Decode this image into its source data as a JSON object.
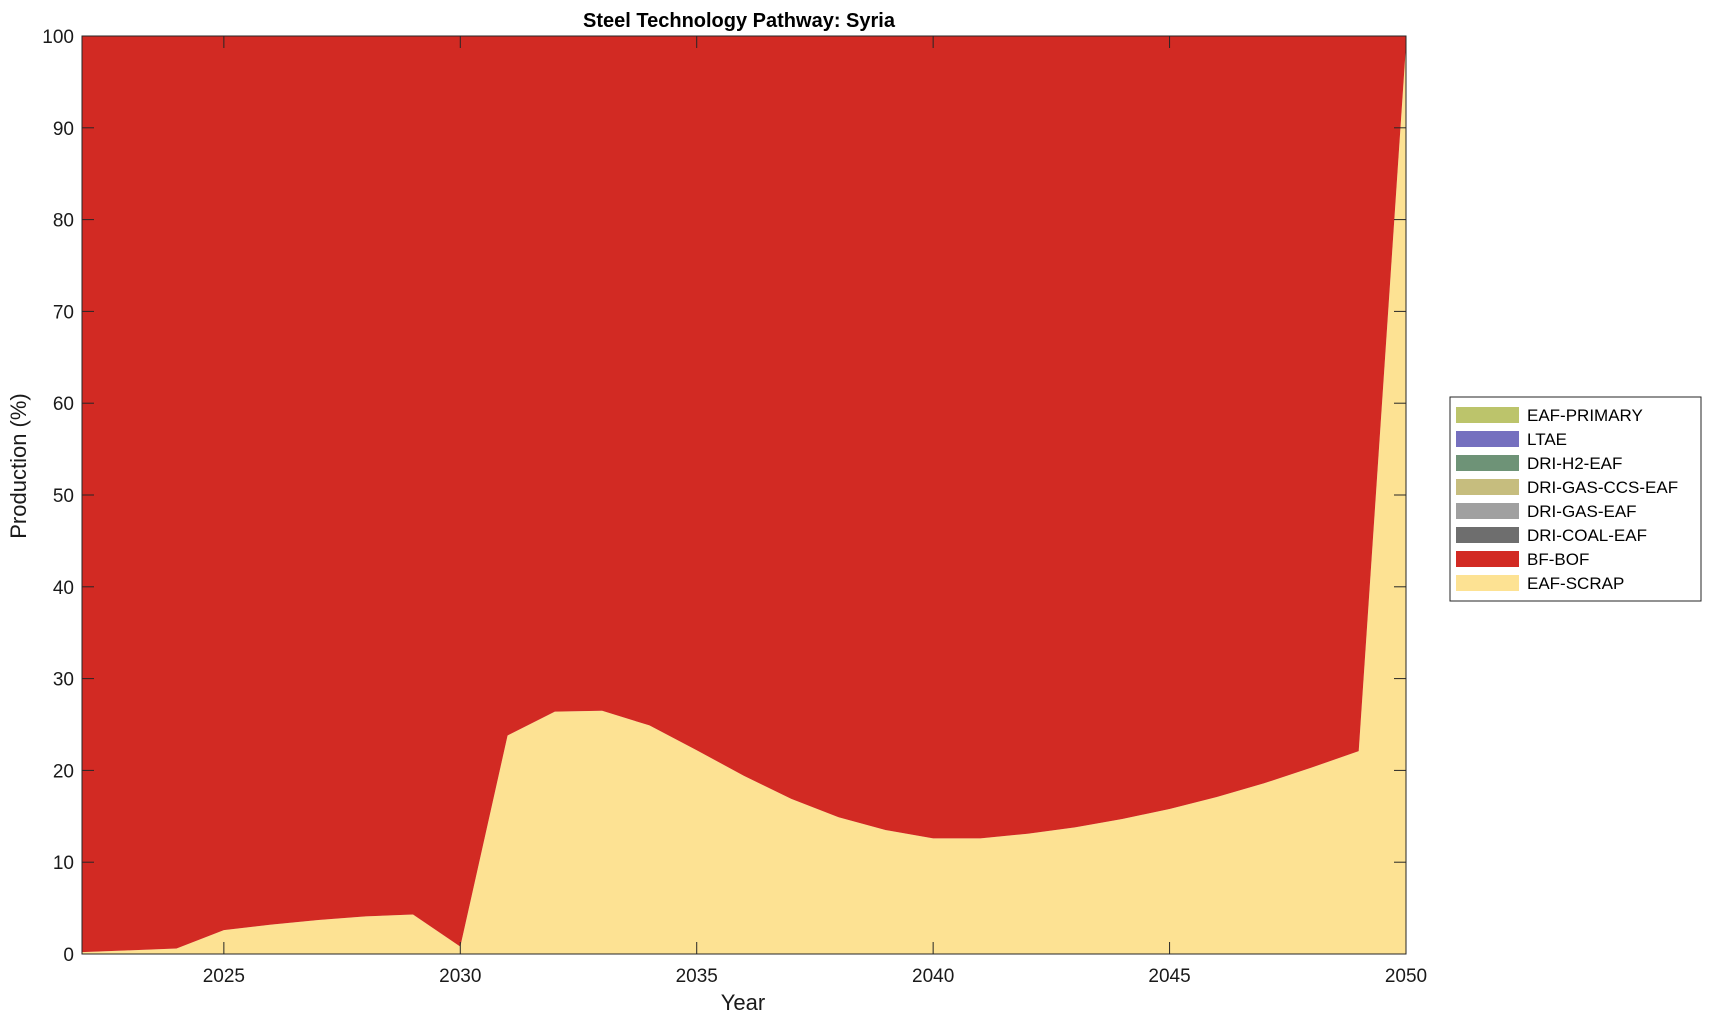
{
  "chart_data": {
    "type": "area",
    "title": "Steel Technology Pathway: Syria",
    "xlabel": "Year",
    "ylabel": "Production (%)",
    "xlim": [
      2022,
      2050
    ],
    "ylim": [
      0,
      100
    ],
    "x_ticks": [
      "2025",
      "2030",
      "2035",
      "2040",
      "2045",
      "2050"
    ],
    "y_ticks": [
      "0",
      "10",
      "20",
      "30",
      "40",
      "50",
      "60",
      "70",
      "80",
      "90",
      "100"
    ],
    "legend_position": "right",
    "stacked": true,
    "x": [
      2022,
      2023,
      2024,
      2025,
      2026,
      2027,
      2028,
      2029,
      2030,
      2031,
      2032,
      2033,
      2034,
      2035,
      2036,
      2037,
      2038,
      2039,
      2040,
      2041,
      2042,
      2043,
      2044,
      2045,
      2046,
      2047,
      2048,
      2049,
      2050
    ],
    "series": [
      {
        "name": "EAF-SCRAP",
        "color": "#FDE293",
        "values": [
          0.2,
          0.4,
          0.6,
          2.6,
          3.2,
          3.7,
          4.1,
          4.3,
          0.8,
          23.8,
          26.4,
          26.5,
          24.9,
          22.2,
          19.4,
          16.9,
          14.9,
          13.5,
          12.6,
          12.6,
          13.1,
          13.8,
          14.7,
          15.8,
          17.1,
          18.6,
          20.3,
          22.1,
          99.0
        ]
      },
      {
        "name": "BF-BOF",
        "color": "#D22A23",
        "values": [
          99.8,
          99.6,
          99.4,
          97.4,
          96.8,
          96.3,
          95.9,
          95.7,
          99.2,
          76.2,
          73.6,
          73.5,
          75.1,
          77.8,
          80.6,
          83.1,
          85.1,
          86.5,
          87.4,
          87.4,
          86.9,
          86.2,
          85.3,
          84.2,
          82.9,
          81.4,
          79.7,
          77.9,
          1.0
        ]
      },
      {
        "name": "DRI-COAL-EAF",
        "color": "#6E6E6E",
        "values": [
          0,
          0,
          0,
          0,
          0,
          0,
          0,
          0,
          0,
          0,
          0,
          0,
          0,
          0,
          0,
          0,
          0,
          0,
          0,
          0,
          0,
          0,
          0,
          0,
          0,
          0,
          0,
          0,
          0
        ]
      },
      {
        "name": "DRI-GAS-EAF",
        "color": "#A0A0A0",
        "values": [
          0,
          0,
          0,
          0,
          0,
          0,
          0,
          0,
          0,
          0,
          0,
          0,
          0,
          0,
          0,
          0,
          0,
          0,
          0,
          0,
          0,
          0,
          0,
          0,
          0,
          0,
          0,
          0,
          0
        ]
      },
      {
        "name": "DRI-GAS-CCS-EAF",
        "color": "#C6BD7E",
        "values": [
          0,
          0,
          0,
          0,
          0,
          0,
          0,
          0,
          0,
          0,
          0,
          0,
          0,
          0,
          0,
          0,
          0,
          0,
          0,
          0,
          0,
          0,
          0,
          0,
          0,
          0,
          0,
          0,
          0
        ]
      },
      {
        "name": "DRI-H2-EAF",
        "color": "#6E9377",
        "values": [
          0,
          0,
          0,
          0,
          0,
          0,
          0,
          0,
          0,
          0,
          0,
          0,
          0,
          0,
          0,
          0,
          0,
          0,
          0,
          0,
          0,
          0,
          0,
          0,
          0,
          0,
          0,
          0,
          0
        ]
      },
      {
        "name": "LTAE",
        "color": "#7570BF",
        "values": [
          0,
          0,
          0,
          0,
          0,
          0,
          0,
          0,
          0,
          0,
          0,
          0,
          0,
          0,
          0,
          0,
          0,
          0,
          0,
          0,
          0,
          0,
          0,
          0,
          0,
          0,
          0,
          0,
          0
        ]
      },
      {
        "name": "EAF-PRIMARY",
        "color": "#BCC46B",
        "values": [
          0,
          0,
          0,
          0,
          0,
          0,
          0,
          0,
          0,
          0,
          0,
          0,
          0,
          0,
          0,
          0,
          0,
          0,
          0,
          0,
          0,
          0,
          0,
          0,
          0,
          0,
          0,
          0,
          0
        ]
      }
    ],
    "legend_order": [
      "EAF-PRIMARY",
      "LTAE",
      "DRI-H2-EAF",
      "DRI-GAS-CCS-EAF",
      "DRI-GAS-EAF",
      "DRI-COAL-EAF",
      "BF-BOF",
      "EAF-SCRAP"
    ]
  }
}
